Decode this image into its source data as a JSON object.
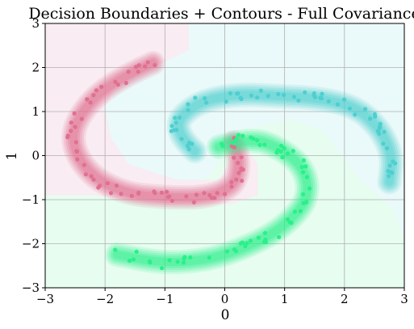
{
  "chart_data": {
    "type": "scatter",
    "title": "Decision Boundaries + Contours - Full Covariance",
    "xlabel": "0",
    "ylabel": "1",
    "xlim": [
      -3,
      3
    ],
    "ylim": [
      -3,
      3
    ],
    "xticks": [
      "−3",
      "−2",
      "−1",
      "0",
      "1",
      "2",
      "3"
    ],
    "yticks": [
      "−3",
      "−2",
      "−1",
      "0",
      "1",
      "2",
      "3"
    ],
    "grid": true,
    "legend": "none",
    "colors": {
      "pink": "#e07090",
      "cyan": "#4ecfcf",
      "green": "#2af08a",
      "region_pink": "#f9ecf2",
      "region_cyan": "#eaf9f9",
      "region_green": "#e6fdf0"
    },
    "series": [
      {
        "color": "#e07090",
        "spine": [
          [
            -1.2,
            2.1
          ],
          [
            -1.7,
            1.8
          ],
          [
            -2.3,
            1.2
          ],
          [
            -2.6,
            0.4
          ],
          [
            -2.3,
            -0.4
          ],
          [
            -1.7,
            -0.85
          ],
          [
            -1.0,
            -0.95
          ],
          [
            -0.3,
            -0.95
          ],
          [
            0.15,
            -0.7
          ],
          [
            0.25,
            -0.2
          ],
          [
            0.15,
            0.3
          ]
        ]
      },
      {
        "color": "#4ecfcf",
        "spine": [
          [
            -0.5,
            0.1
          ],
          [
            -0.9,
            0.6
          ],
          [
            -0.5,
            1.2
          ],
          [
            0.2,
            1.4
          ],
          [
            0.9,
            1.35
          ],
          [
            1.6,
            1.3
          ],
          [
            2.2,
            1.1
          ],
          [
            2.6,
            0.6
          ],
          [
            2.8,
            0.0
          ],
          [
            2.75,
            -0.6
          ]
        ]
      },
      {
        "color": "#2af08a",
        "spine": [
          [
            -0.1,
            0.2
          ],
          [
            0.4,
            0.4
          ],
          [
            0.9,
            0.2
          ],
          [
            1.35,
            -0.3
          ],
          [
            1.4,
            -1.0
          ],
          [
            1.0,
            -1.6
          ],
          [
            0.5,
            -2.0
          ],
          [
            -0.2,
            -2.35
          ],
          [
            -1.0,
            -2.45
          ],
          [
            -1.8,
            -2.25
          ]
        ]
      }
    ]
  }
}
